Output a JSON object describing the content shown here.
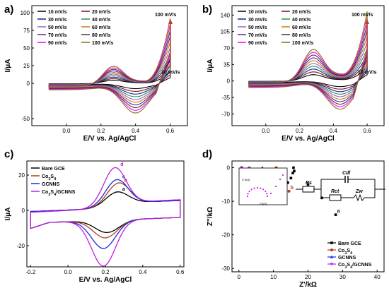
{
  "panel_labels": [
    "a)",
    "b)",
    "c)",
    "d)"
  ],
  "colors": {
    "scan_rates": [
      "#000000",
      "#7a1010",
      "#1a1a9a",
      "#2e8b57",
      "#9a60c0",
      "#c08010",
      "#6a1a9a",
      "#3a3a3a",
      "#ff00ff",
      "#8b6914"
    ],
    "arrow": "#c0392b",
    "bare": "#000000",
    "co3s4": "#b03a1a",
    "gcnns": "#1a2ad8",
    "composite": "#c020e0"
  },
  "chart_data": [
    {
      "type": "line",
      "panel": "a)",
      "xlabel": "E/V vs. Ag/AgCl",
      "ylabel": "I/μA",
      "xlim": [
        -0.2,
        0.7
      ],
      "ylim": [
        -60,
        110
      ],
      "xticks": [
        "0.0",
        "0.2",
        "0.4",
        "0.6"
      ],
      "xtick_values": [
        0,
        0.2,
        0.4,
        0.6
      ],
      "yticks": [
        "-50",
        "0",
        "25",
        "50",
        "75",
        "100"
      ],
      "ytick_values": [
        -50,
        0,
        25,
        50,
        75,
        100
      ],
      "legend": [
        "10 mV/s",
        "20 mV/s",
        "30 mV/s",
        "40 mV/s",
        "50 mV/s",
        "60 mV/s",
        "70 mV/s",
        "80 mV/s",
        "90 mV/s",
        "100 mV/s"
      ],
      "legend_placement": "top-left",
      "annotation_top": "100 mV/s",
      "annotation_bottom": "10 mV/s",
      "series_params": {
        "scale_min": 0.18,
        "anodic_peak_x": 0.27,
        "anodic_peak_y": 22,
        "cathodic_peak_x": 0.4,
        "cathodic_peak_y": -40,
        "end_current": 95,
        "start_current": -12
      }
    },
    {
      "type": "line",
      "panel": "b)",
      "xlabel": "E/V vs. Ag/AgCl",
      "ylabel": "I/μA",
      "xlim": [
        -0.2,
        0.7
      ],
      "ylim": [
        -95,
        160
      ],
      "xticks": [
        "0.0",
        "0.2",
        "0.4",
        "0.6"
      ],
      "xtick_values": [
        0,
        0.2,
        0.4,
        0.6
      ],
      "yticks": [
        "-70",
        "0",
        "70",
        "140"
      ],
      "ytick_values": [
        -70,
        -35,
        0,
        35,
        70,
        105,
        140
      ],
      "ytick_labels_all": [
        "-70",
        "-35",
        "0",
        "35",
        "70",
        "105",
        "140"
      ],
      "legend": [
        "10 mV/s",
        "20 mV/s",
        "30 mV/s",
        "40 mV/s",
        "50 mV/s",
        "60 mV/s",
        "70 mV/s",
        "80 mV/s",
        "90 mV/s",
        "100 mV/s"
      ],
      "legend_placement": "top-left",
      "annotation_top": "100 mV/s",
      "annotation_bottom": "10 mV/s",
      "series_params": {
        "scale_min": 0.2,
        "anodic_peak_x": 0.28,
        "anodic_peak_y": 55,
        "cathodic_peak_x": 0.44,
        "cathodic_peak_y": -58,
        "end_current": 150,
        "start_current": -20
      }
    },
    {
      "type": "line",
      "panel": "c)",
      "xlabel": "E/V vs. Ag/AgCl",
      "ylabel": "I/μA",
      "xlim": [
        -0.22,
        0.62
      ],
      "ylim": [
        -32,
        28
      ],
      "xticks": [
        "-0.2",
        "0.0",
        "0.2",
        "0.4",
        "0.6"
      ],
      "xtick_values": [
        -0.2,
        0,
        0.2,
        0.4,
        0.6
      ],
      "yticks": [
        "-20",
        "0",
        "20"
      ],
      "ytick_values": [
        -20,
        0,
        20
      ],
      "legend": [
        "Bare GCE",
        "Co3S4",
        "GCNNS",
        "Co3S4/GCNNS"
      ],
      "legend_placement": "top-left",
      "curve_labels": [
        "a",
        "b",
        "c",
        "d"
      ],
      "series": [
        {
          "name": "Bare GCE",
          "label": "a",
          "anodic": [
            0.26,
            10
          ],
          "cathodic": [
            0.21,
            -11
          ]
        },
        {
          "name": "Co3S4",
          "label": "b",
          "anodic": [
            0.27,
            15
          ],
          "cathodic": [
            0.2,
            -14
          ]
        },
        {
          "name": "GCNNS",
          "label": "c",
          "anodic": [
            0.26,
            17
          ],
          "cathodic": [
            0.19,
            -20
          ]
        },
        {
          "name": "Co3S4/GCNNS",
          "label": "d",
          "anodic": [
            0.25,
            24
          ],
          "cathodic": [
            0.19,
            -30
          ]
        }
      ]
    },
    {
      "type": "scatter",
      "panel": "d)",
      "xlabel": "Z'/kΩ",
      "ylabel": "Z''/kΩ",
      "xlim": [
        -2,
        42
      ],
      "ylim": [
        -31,
        2
      ],
      "xticks": [
        "0",
        "10",
        "20",
        "30",
        "40"
      ],
      "xtick_values": [
        0,
        10,
        20,
        30,
        40
      ],
      "yticks": [
        "-30",
        "-20",
        "-10",
        "0"
      ],
      "ytick_values": [
        -30,
        -20,
        -10,
        0
      ],
      "legend": [
        "Bare GCE",
        "Co3S4",
        "GCNNS",
        "Co3S4/GCNNS"
      ],
      "legend_placement": "bottom-right",
      "curve_labels": [
        "a",
        "b",
        "c",
        "d"
      ],
      "series": [
        {
          "name": "Bare GCE",
          "label": "a",
          "rct": 15,
          "tail": [
            [
              16,
              1
            ],
            [
              20,
              5
            ],
            [
              24,
              9
            ],
            [
              28,
              14
            ]
          ]
        },
        {
          "name": "Co3S4",
          "label": "b",
          "rct": 10,
          "tail": [
            [
              11,
              1
            ],
            [
              13,
              4
            ],
            [
              14.5,
              7
            ]
          ]
        },
        {
          "name": "GCNNS",
          "label": "c",
          "rct": 6,
          "tail": [
            [
              6.5,
              1
            ],
            [
              8.5,
              3.5
            ],
            [
              10.5,
              7
            ]
          ]
        },
        {
          "name": "Co3S4/GCNNS",
          "label": "d",
          "rct": 2.2,
          "tail": [
            [
              2.6,
              0.5
            ],
            [
              3.5,
              2
            ]
          ]
        }
      ],
      "inset": {
        "xlabel": "Z'(kΩ)",
        "ylabel": "Z''(kΩ)"
      },
      "circuit_labels": {
        "rs": "Rs",
        "cdl": "Cdl",
        "rct": "Rct",
        "zw": "Zw"
      }
    }
  ]
}
